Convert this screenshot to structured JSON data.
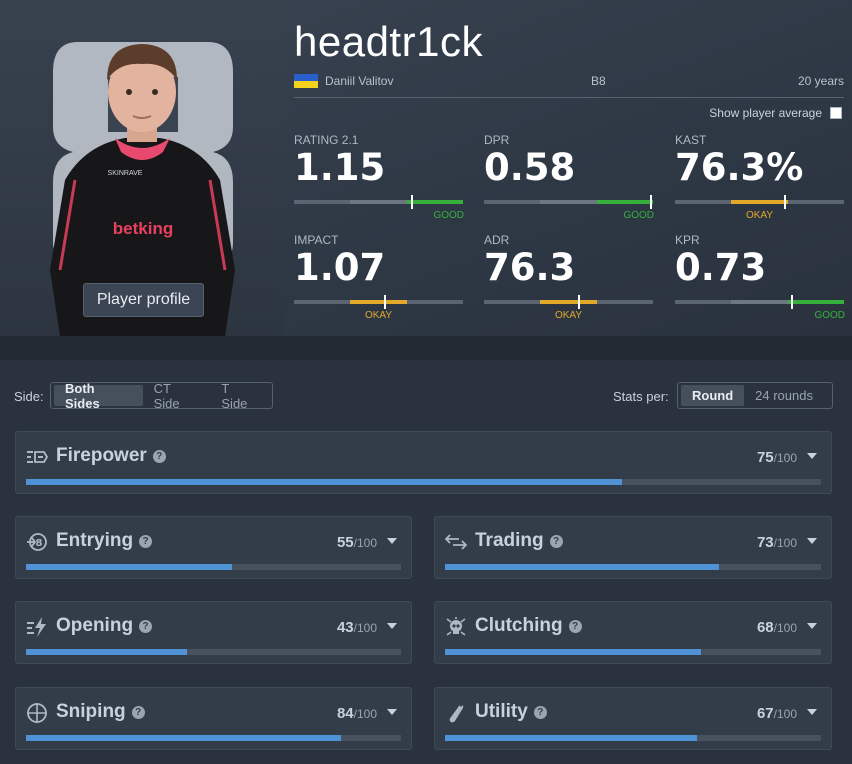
{
  "player": {
    "nickname": "headtr1ck",
    "real_name": "Daniil Valitov",
    "team": "B8",
    "age": "20 years",
    "profile_button": "Player profile",
    "show_average_label": "Show player average"
  },
  "stats": [
    {
      "label": "RATING 2.1",
      "value": "1.15",
      "verdict": "GOOD",
      "marker_pct": 70,
      "zone": "good"
    },
    {
      "label": "DPR",
      "value": "0.58",
      "verdict": "GOOD",
      "marker_pct": 99,
      "zone": "good"
    },
    {
      "label": "KAST",
      "value": "76.3%",
      "verdict": "OKAY",
      "marker_pct": 65,
      "zone": "okay"
    },
    {
      "label": "IMPACT",
      "value": "1.07",
      "verdict": "OKAY",
      "marker_pct": 54,
      "zone": "okay"
    },
    {
      "label": "ADR",
      "value": "76.3",
      "verdict": "OKAY",
      "marker_pct": 56,
      "zone": "okay"
    },
    {
      "label": "KPR",
      "value": "0.73",
      "verdict": "GOOD",
      "marker_pct": 69,
      "zone": "good"
    }
  ],
  "filters": {
    "side_label": "Side:",
    "side_options": [
      "Both Sides",
      "CT Side",
      "T Side"
    ],
    "side_selected": "Both Sides",
    "stats_per_label": "Stats per:",
    "stats_per_options": [
      "Round",
      "24 rounds"
    ],
    "stats_per_selected": "Round"
  },
  "categories": [
    {
      "name": "Firepower",
      "score": "75",
      "max": "/100",
      "fill_pct": 75
    },
    {
      "name": "Entrying",
      "score": "55",
      "max": "/100",
      "fill_pct": 55
    },
    {
      "name": "Trading",
      "score": "73",
      "max": "/100",
      "fill_pct": 73
    },
    {
      "name": "Opening",
      "score": "43",
      "max": "/100",
      "fill_pct": 43
    },
    {
      "name": "Clutching",
      "score": "68",
      "max": "/100",
      "fill_pct": 68
    },
    {
      "name": "Sniping",
      "score": "84",
      "max": "/100",
      "fill_pct": 84
    },
    {
      "name": "Utility",
      "score": "67",
      "max": "/100",
      "fill_pct": 67
    }
  ],
  "colors": {
    "good": "#36b03b",
    "okay": "#e3a92b",
    "bar_fill": "#4f93d6"
  },
  "icons": {
    "firepower": "firepower-icon",
    "entrying": "entrying-icon",
    "trading": "trading-icon",
    "opening": "opening-icon",
    "clutching": "skull-icon",
    "sniping": "crosshair-icon",
    "utility": "grenade-icon"
  }
}
